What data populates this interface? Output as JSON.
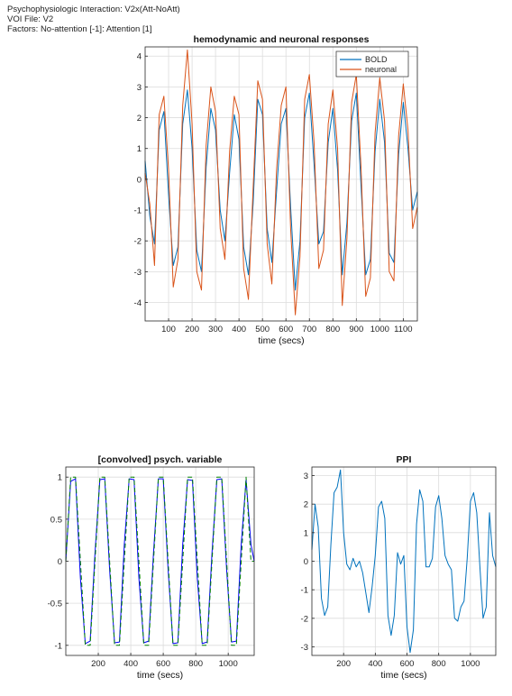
{
  "header": {
    "line1": "Psychophysiologic Interaction: V2x(Att-NoAtt)",
    "line2": "VOI File: V2",
    "line3": "Factors: No-attention [-1]: Attention [1]"
  },
  "colors": {
    "bold": "#0072BD",
    "neuronal": "#D95319",
    "convolved": "#0000FF",
    "psych": "#008000",
    "ppi": "#0072BD",
    "grid": "#dcdcdc",
    "axis": "#262626"
  },
  "chart_data": [
    {
      "type": "line",
      "title": "hemodynamic and neuronal responses",
      "xlabel": "time (secs)",
      "ylabel": "",
      "xlim": [
        0,
        1160
      ],
      "ylim": [
        -4.6,
        4.3
      ],
      "xticks": [
        100,
        200,
        300,
        400,
        500,
        600,
        700,
        800,
        900,
        1000,
        1100
      ],
      "yticks": [
        -4,
        -3,
        -2,
        -1,
        0,
        1,
        2,
        3,
        4
      ],
      "grid": true,
      "legend": "top-right",
      "series": [
        {
          "name": "BOLD",
          "x": [
            0,
            20,
            40,
            60,
            80,
            100,
            120,
            140,
            160,
            180,
            200,
            220,
            240,
            260,
            280,
            300,
            320,
            340,
            360,
            380,
            400,
            420,
            440,
            460,
            480,
            500,
            520,
            540,
            560,
            580,
            600,
            620,
            640,
            660,
            680,
            700,
            720,
            740,
            760,
            780,
            800,
            820,
            840,
            860,
            880,
            900,
            920,
            940,
            960,
            980,
            1000,
            1020,
            1040,
            1060,
            1080,
            1100,
            1120,
            1140,
            1160
          ],
          "values": [
            0.6,
            -1.2,
            -2.1,
            1.6,
            2.2,
            -0.5,
            -2.8,
            -2.2,
            1.8,
            2.9,
            1.0,
            -2.3,
            -3.0,
            0.4,
            2.3,
            1.6,
            -1.0,
            -2.0,
            0.2,
            2.1,
            1.3,
            -2.2,
            -3.1,
            -0.8,
            2.6,
            2.1,
            -1.6,
            -2.7,
            -0.4,
            1.8,
            2.3,
            -0.9,
            -3.6,
            -2.0,
            2.0,
            2.8,
            0.5,
            -2.1,
            -1.7,
            1.2,
            2.3,
            0.3,
            -3.1,
            -1.4,
            1.9,
            2.8,
            -0.2,
            -3.1,
            -2.6,
            0.9,
            2.6,
            1.2,
            -2.4,
            -2.7,
            0.8,
            2.5,
            1.0,
            -1.0,
            -0.4
          ]
        },
        {
          "name": "neuronal",
          "x": [
            0,
            20,
            40,
            60,
            80,
            100,
            120,
            140,
            160,
            180,
            200,
            220,
            240,
            260,
            280,
            300,
            320,
            340,
            360,
            380,
            400,
            420,
            440,
            460,
            480,
            500,
            520,
            540,
            560,
            580,
            600,
            620,
            640,
            660,
            680,
            700,
            720,
            740,
            760,
            780,
            800,
            820,
            840,
            860,
            880,
            900,
            920,
            940,
            960,
            980,
            1000,
            1020,
            1040,
            1060,
            1080,
            1100,
            1120,
            1140,
            1160
          ],
          "values": [
            0.2,
            -0.8,
            -2.8,
            2.1,
            2.7,
            0.3,
            -3.5,
            -2.6,
            2.4,
            4.2,
            1.8,
            -3.0,
            -3.6,
            1.1,
            3.0,
            2.2,
            -1.6,
            -2.6,
            0.9,
            2.7,
            2.1,
            -2.9,
            -3.9,
            -0.3,
            3.2,
            2.6,
            -2.1,
            -3.4,
            0.3,
            2.4,
            3.0,
            -1.6,
            -4.4,
            -2.5,
            2.6,
            3.4,
            1.2,
            -2.9,
            -2.3,
            1.8,
            2.9,
            1.0,
            -4.1,
            -1.9,
            2.5,
            3.4,
            0.4,
            -3.8,
            -3.2,
            1.5,
            3.3,
            1.9,
            -3.0,
            -3.3,
            1.4,
            3.1,
            1.6,
            -1.6,
            -0.9
          ]
        }
      ]
    },
    {
      "type": "line",
      "title": "[convolved] psych. variable",
      "xlabel": "time (secs)",
      "ylabel": "",
      "xlim": [
        0,
        1160
      ],
      "ylim": [
        -1.12,
        1.12
      ],
      "xticks": [
        200,
        400,
        600,
        800,
        1000
      ],
      "yticks": [
        -1,
        -0.5,
        0,
        0.5,
        1
      ],
      "grid": true,
      "series": [
        {
          "x": [
            0,
            30,
            60,
            90,
            120,
            150,
            180,
            210,
            240,
            270,
            300,
            330,
            360,
            390,
            420,
            450,
            480,
            510,
            540,
            570,
            600,
            630,
            660,
            690,
            720,
            750,
            780,
            810,
            840,
            870,
            900,
            930,
            960,
            990,
            1020,
            1050,
            1080,
            1110,
            1140,
            1160
          ],
          "values": [
            0,
            0.95,
            0.98,
            -0.2,
            -0.98,
            -0.95,
            0.1,
            0.97,
            0.98,
            -0.1,
            -0.97,
            -0.96,
            0.2,
            0.98,
            0.97,
            -0.2,
            -0.97,
            -0.95,
            0.1,
            0.98,
            0.98,
            -0.1,
            -0.98,
            -0.97,
            0.2,
            0.97,
            0.96,
            -0.2,
            -0.98,
            -0.96,
            0.1,
            0.97,
            0.98,
            -0.1,
            -0.96,
            -0.95,
            0.2,
            0.97,
            0.2,
            0
          ]
        },
        {
          "x": [
            0,
            30,
            60,
            90,
            120,
            150,
            180,
            210,
            240,
            270,
            300,
            330,
            360,
            390,
            420,
            450,
            480,
            510,
            540,
            570,
            600,
            630,
            660,
            690,
            720,
            750,
            780,
            810,
            840,
            870,
            900,
            930,
            960,
            990,
            1020,
            1050,
            1080,
            1110,
            1140,
            1160
          ],
          "values": [
            0,
            1,
            1,
            0,
            -1,
            -1,
            0,
            1,
            1,
            0,
            -1,
            -1,
            0,
            1,
            1,
            0,
            -1,
            -1,
            0,
            1,
            1,
            0,
            -1,
            -1,
            0,
            1,
            1,
            0,
            -1,
            -1,
            0,
            1,
            1,
            0,
            -1,
            -1,
            0,
            1,
            0,
            0
          ]
        }
      ]
    },
    {
      "type": "line",
      "title": "PPI",
      "xlabel": "time (secs)",
      "ylabel": "",
      "xlim": [
        0,
        1160
      ],
      "ylim": [
        -3.3,
        3.3
      ],
      "xticks": [
        200,
        400,
        600,
        800,
        1000
      ],
      "yticks": [
        -3,
        -2,
        -1,
        0,
        1,
        2,
        3
      ],
      "grid": true,
      "series": [
        {
          "x": [
            0,
            20,
            40,
            60,
            80,
            100,
            120,
            140,
            160,
            180,
            200,
            220,
            240,
            260,
            280,
            300,
            320,
            340,
            360,
            380,
            400,
            420,
            440,
            460,
            480,
            500,
            520,
            540,
            560,
            580,
            600,
            620,
            640,
            660,
            680,
            700,
            720,
            740,
            760,
            780,
            800,
            820,
            840,
            860,
            880,
            900,
            920,
            940,
            960,
            980,
            1000,
            1020,
            1040,
            1060,
            1080,
            1100,
            1120,
            1140,
            1160
          ],
          "values": [
            0.4,
            2.0,
            1.2,
            -1.3,
            -1.9,
            -1.6,
            0.6,
            2.4,
            2.6,
            3.2,
            1.0,
            -0.1,
            -0.3,
            0.1,
            -0.2,
            0.0,
            -0.4,
            -1.1,
            -1.8,
            -0.9,
            0.2,
            1.9,
            2.1,
            1.5,
            -1.9,
            -2.6,
            -1.9,
            0.3,
            -0.1,
            0.2,
            -2.3,
            -3.2,
            -2.4,
            1.3,
            2.5,
            2.1,
            -0.2,
            -0.2,
            0.1,
            1.9,
            2.3,
            1.5,
            0.2,
            -0.1,
            -0.3,
            -2.0,
            -2.1,
            -1.6,
            -1.4,
            0.1,
            2.1,
            2.4,
            1.7,
            -0.2,
            -2.0,
            -1.6,
            1.7,
            0.2,
            -0.2
          ]
        }
      ]
    }
  ]
}
